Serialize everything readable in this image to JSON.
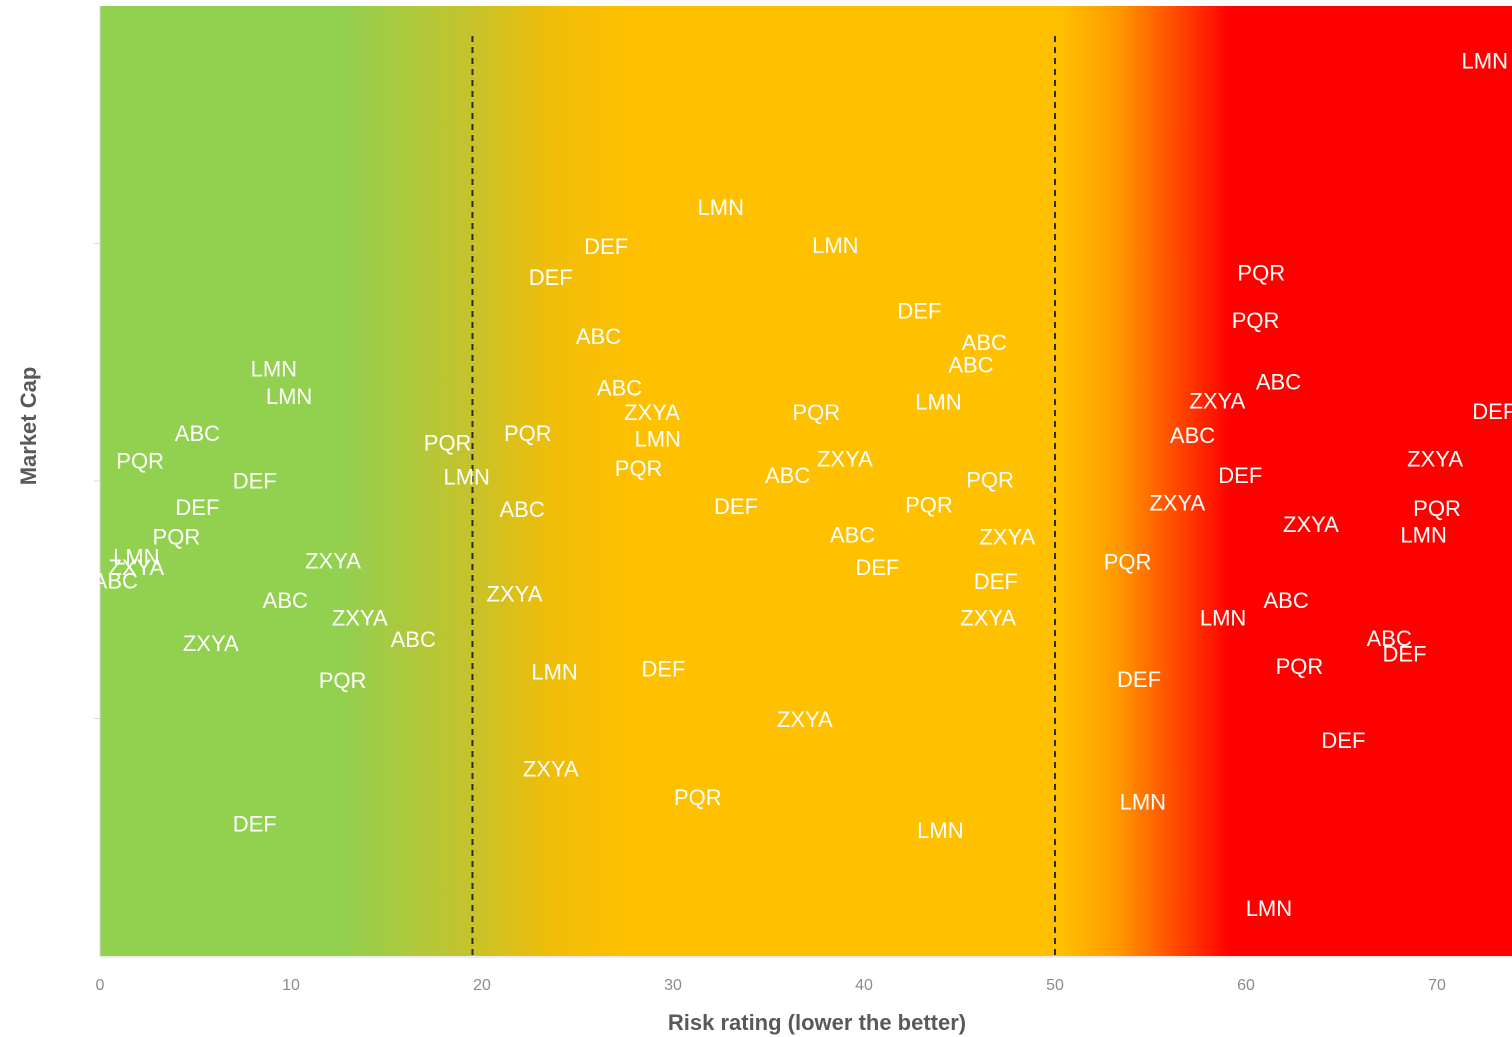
{
  "chart_data": {
    "type": "scatter",
    "title": "",
    "xlabel": "Risk rating (lower the better)",
    "ylabel": "Market Cap",
    "xlim": [
      0,
      74
    ],
    "ylim": [
      0,
      100
    ],
    "x_ticks": [
      0,
      10,
      20,
      30,
      40,
      50,
      60,
      70
    ],
    "y_ticks": [
      0,
      25,
      50,
      75
    ],
    "y_tick_labels_shown": false,
    "grid": false,
    "legend": "none",
    "background_zones": [
      {
        "name": "low",
        "from": 0,
        "to": 19.5,
        "color": "#92d050"
      },
      {
        "name": "medium",
        "from": 19.5,
        "to": 50,
        "color": "#ffc000"
      },
      {
        "name": "high",
        "from": 50,
        "to": 74,
        "color": "#ff0000"
      }
    ],
    "thresholds": [
      19.5,
      50
    ],
    "points": [
      {
        "label": "LMN",
        "x": 72.5,
        "y": 94.2
      },
      {
        "label": "LMN",
        "x": 32.5,
        "y": 78.8
      },
      {
        "label": "DEF",
        "x": 26.5,
        "y": 74.7
      },
      {
        "label": "LMN",
        "x": 38.5,
        "y": 74.8
      },
      {
        "label": "DEF",
        "x": 23.6,
        "y": 71.4
      },
      {
        "label": "PQR",
        "x": 60.8,
        "y": 71.9
      },
      {
        "label": "DEF",
        "x": 42.9,
        "y": 67.9
      },
      {
        "label": "PQR",
        "x": 60.5,
        "y": 66.9
      },
      {
        "label": "ABC",
        "x": 26.1,
        "y": 65.2
      },
      {
        "label": "ABC",
        "x": 46.3,
        "y": 64.6
      },
      {
        "label": "ABC",
        "x": 45.6,
        "y": 62.2
      },
      {
        "label": "LMN",
        "x": 9.1,
        "y": 61.8
      },
      {
        "label": "LMN",
        "x": 9.9,
        "y": 58.9
      },
      {
        "label": "ABC",
        "x": 27.2,
        "y": 59.8
      },
      {
        "label": "ABC",
        "x": 61.7,
        "y": 60.4
      },
      {
        "label": "ZXYA",
        "x": 58.5,
        "y": 58.4
      },
      {
        "label": "LMN",
        "x": 43.9,
        "y": 58.3
      },
      {
        "label": "ZXYA",
        "x": 28.9,
        "y": 57.2
      },
      {
        "label": "PQR",
        "x": 37.5,
        "y": 57.2
      },
      {
        "label": "DEF",
        "x": 73.0,
        "y": 57.3
      },
      {
        "label": "LMN",
        "x": 29.2,
        "y": 54.4
      },
      {
        "label": "ABC",
        "x": 5.1,
        "y": 55.0
      },
      {
        "label": "PQR",
        "x": 22.4,
        "y": 55.0
      },
      {
        "label": "ABC",
        "x": 57.2,
        "y": 54.8
      },
      {
        "label": "PQR",
        "x": 18.2,
        "y": 54.0
      },
      {
        "label": "PQR",
        "x": 2.1,
        "y": 52.1
      },
      {
        "label": "ZXYA",
        "x": 39.0,
        "y": 52.3
      },
      {
        "label": "ZXYA",
        "x": 69.9,
        "y": 52.3
      },
      {
        "label": "PQR",
        "x": 28.2,
        "y": 51.3
      },
      {
        "label": "LMN",
        "x": 19.2,
        "y": 50.4
      },
      {
        "label": "DEF",
        "x": 8.1,
        "y": 50.0
      },
      {
        "label": "ABC",
        "x": 36.0,
        "y": 50.6
      },
      {
        "label": "DEF",
        "x": 59.7,
        "y": 50.6
      },
      {
        "label": "PQR",
        "x": 46.6,
        "y": 50.1
      },
      {
        "label": "ZXYA",
        "x": 56.4,
        "y": 47.7
      },
      {
        "label": "DEF",
        "x": 5.1,
        "y": 47.2
      },
      {
        "label": "PQR",
        "x": 43.4,
        "y": 47.5
      },
      {
        "label": "DEF",
        "x": 33.3,
        "y": 47.3
      },
      {
        "label": "ABC",
        "x": 22.1,
        "y": 47.0
      },
      {
        "label": "PQR",
        "x": 70.0,
        "y": 47.1
      },
      {
        "label": "ZXYA",
        "x": 63.4,
        "y": 45.4
      },
      {
        "label": "LMN",
        "x": 69.3,
        "y": 44.3
      },
      {
        "label": "PQR",
        "x": 4.0,
        "y": 44.1
      },
      {
        "label": "ABC",
        "x": 39.4,
        "y": 44.3
      },
      {
        "label": "ZXYA",
        "x": 47.5,
        "y": 44.1
      },
      {
        "label": "DEF",
        "x": 40.7,
        "y": 40.9
      },
      {
        "label": "LMN",
        "x": 1.9,
        "y": 42.0
      },
      {
        "label": "ZXYA",
        "x": 1.9,
        "y": 40.9
      },
      {
        "label": "ZXYA",
        "x": 12.2,
        "y": 41.6
      },
      {
        "label": "PQR",
        "x": 53.8,
        "y": 41.5
      },
      {
        "label": "DEF",
        "x": 46.9,
        "y": 39.4
      },
      {
        "label": "ABC",
        "x": 0.8,
        "y": 39.5
      },
      {
        "label": "ZXYA",
        "x": 21.7,
        "y": 38.1
      },
      {
        "label": "ABC",
        "x": 9.7,
        "y": 37.4
      },
      {
        "label": "ABC",
        "x": 62.1,
        "y": 37.4
      },
      {
        "label": "ZXYA",
        "x": 13.6,
        "y": 35.6
      },
      {
        "label": "ZXYA",
        "x": 46.5,
        "y": 35.6
      },
      {
        "label": "LMN",
        "x": 58.8,
        "y": 35.6
      },
      {
        "label": "ABC",
        "x": 16.4,
        "y": 33.3
      },
      {
        "label": "ZXYA",
        "x": 5.8,
        "y": 32.9
      },
      {
        "label": "ABC",
        "x": 67.5,
        "y": 33.4
      },
      {
        "label": "DEF",
        "x": 68.3,
        "y": 31.8
      },
      {
        "label": "DEF",
        "x": 29.5,
        "y": 30.2
      },
      {
        "label": "LMN",
        "x": 23.8,
        "y": 29.9
      },
      {
        "label": "PQR",
        "x": 62.8,
        "y": 30.5
      },
      {
        "label": "PQR",
        "x": 12.7,
        "y": 29.0
      },
      {
        "label": "DEF",
        "x": 54.4,
        "y": 29.1
      },
      {
        "label": "ZXYA",
        "x": 36.9,
        "y": 24.9
      },
      {
        "label": "DEF",
        "x": 65.1,
        "y": 22.7
      },
      {
        "label": "ZXYA",
        "x": 23.6,
        "y": 19.7
      },
      {
        "label": "PQR",
        "x": 31.3,
        "y": 16.7
      },
      {
        "label": "LMN",
        "x": 54.6,
        "y": 16.2
      },
      {
        "label": "DEF",
        "x": 8.1,
        "y": 13.9
      },
      {
        "label": "LMN",
        "x": 44.0,
        "y": 13.2
      },
      {
        "label": "LMN",
        "x": 61.2,
        "y": 5.0
      }
    ]
  }
}
